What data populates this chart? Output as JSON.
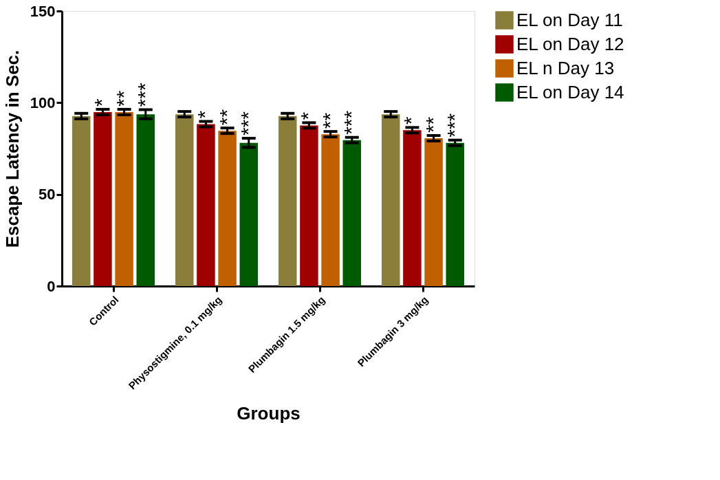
{
  "chart_data": {
    "type": "bar",
    "xlabel": "Groups",
    "ylabel": "Escape Latency in  Sec.",
    "categories": [
      "Control",
      "Physostigmine, 0.1 mg/kg",
      "Plumbagin 1.5 mg/kg",
      "Plumbagin 3 mg/kg"
    ],
    "series": [
      {
        "name": "EL on Day 11",
        "color": "#8b7d3a",
        "values": [
          92.7,
          93.7,
          92.7,
          93.7
        ],
        "errors": [
          1.5,
          1.5,
          1.5,
          1.5
        ]
      },
      {
        "name": "EL on Day 12",
        "color": "#a00000",
        "values": [
          94.9,
          88.3,
          87.6,
          85.0
        ],
        "errors": [
          1.5,
          1.5,
          1.5,
          1.5
        ]
      },
      {
        "name": "EL n Day 13",
        "color": "#c06000",
        "values": [
          94.9,
          84.7,
          82.8,
          80.6
        ],
        "errors": [
          1.5,
          1.5,
          1.5,
          1.5
        ]
      },
      {
        "name": "EL on Day 14",
        "color": "#005a00",
        "values": [
          93.7,
          78.1,
          79.6,
          78.1
        ],
        "errors": [
          2.5,
          2.5,
          1.5,
          1.5
        ]
      }
    ],
    "annotations": [
      {
        "text": "*",
        "x": "Control",
        "y": 96.4
      },
      {
        "text": "**",
        "x": "Control",
        "y": 96.4
      },
      {
        "text": "***",
        "x": "Control",
        "y": 96.2
      },
      {
        "text": "*",
        "x": "Physostigmine, 0.1 mg/kg",
        "y": 89.8
      },
      {
        "text": "**",
        "x": "Physostigmine, 0.1 mg/kg",
        "y": 86.2
      },
      {
        "text": "***",
        "x": "Physostigmine, 0.1 mg/kg",
        "y": 80.6
      },
      {
        "text": "*",
        "x": "Plumbagin 1.5 mg/kg",
        "y": 89.1
      },
      {
        "text": "**",
        "x": "Plumbagin 1.5 mg/kg",
        "y": 84.3
      },
      {
        "text": "***",
        "x": "Plumbagin 1.5 mg/kg",
        "y": 81.1
      },
      {
        "text": "*",
        "x": "Plumbagin 3 mg/kg",
        "y": 86.5
      },
      {
        "text": "**",
        "x": "Plumbagin 3 mg/kg",
        "y": 82.1
      },
      {
        "text": "***",
        "x": "Plumbagin 3 mg/kg",
        "y": 79.6
      }
    ],
    "ylim": [
      0,
      150
    ],
    "yticks": [
      0,
      50,
      100,
      150
    ],
    "grid": false,
    "legend": "top right"
  }
}
